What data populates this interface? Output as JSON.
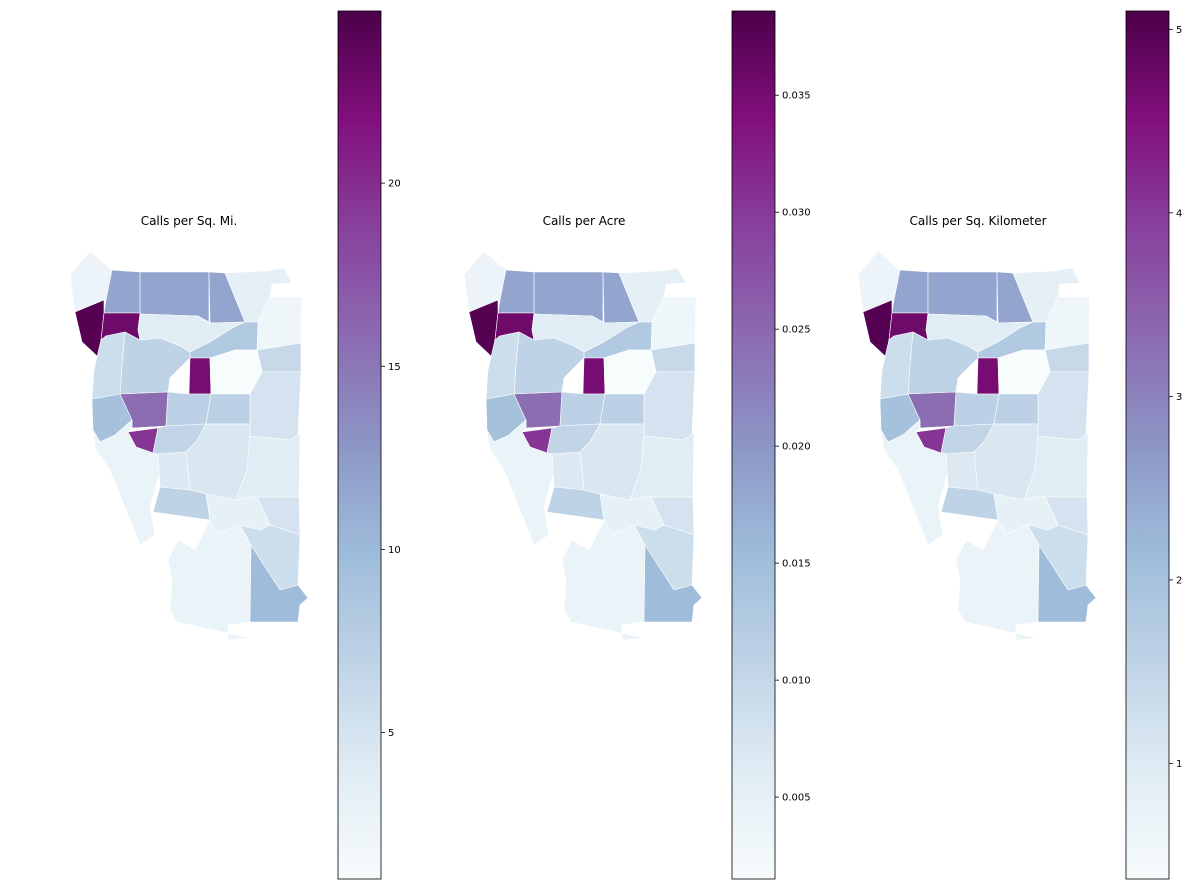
{
  "colormap": {
    "name": "BuPu",
    "stops": [
      "#f7fcfd",
      "#e0ecf4",
      "#bfd3e6",
      "#9ebcda",
      "#8c96c6",
      "#8c6bb1",
      "#88419d",
      "#810f7c",
      "#4d004b"
    ]
  },
  "panels": [
    {
      "title": "Calls per Sq. Mi.",
      "colorbar": {
        "vmin": 1.0,
        "vmax": 24.7,
        "ticks": [
          5,
          10,
          15,
          20
        ],
        "tick_labels": [
          "5",
          "10",
          "15",
          "20"
        ]
      }
    },
    {
      "title": "Calls per Acre",
      "colorbar": {
        "vmin": 0.0015,
        "vmax": 0.0386,
        "ticks": [
          0.005,
          0.01,
          0.015,
          0.02,
          0.025,
          0.03,
          0.035
        ],
        "tick_labels": [
          "0.005",
          "0.010",
          "0.015",
          "0.020",
          "0.025",
          "0.030",
          "0.035"
        ]
      }
    },
    {
      "title": "Calls per Sq. Kilometer",
      "colorbar": {
        "vmin": 0.37,
        "vmax": 5.1,
        "ticks": [
          1,
          2,
          3,
          4,
          5
        ],
        "tick_labels": [
          "1",
          "2",
          "3",
          "4",
          "5"
        ]
      }
    }
  ],
  "regions": [
    {
      "id": "nw-coast",
      "value": 0.06
    },
    {
      "id": "north-1",
      "value": 0.45
    },
    {
      "id": "north-2",
      "value": 0.45
    },
    {
      "id": "north-3",
      "value": 0.45
    },
    {
      "id": "ne-1",
      "value": 0.1
    },
    {
      "id": "ne-strip",
      "value": 0.05
    },
    {
      "id": "west-coast-dark",
      "value": 0.98
    },
    {
      "id": "west-dark-2",
      "value": 0.92
    },
    {
      "id": "central-n",
      "value": 0.12
    },
    {
      "id": "central-ne",
      "value": 0.3
    },
    {
      "id": "east-1",
      "value": 0.22
    },
    {
      "id": "west-1",
      "value": 0.2
    },
    {
      "id": "center-big",
      "value": 0.25
    },
    {
      "id": "dark-square",
      "value": 0.9
    },
    {
      "id": "white-block",
      "value": 0.0
    },
    {
      "id": "east-2",
      "value": 0.17
    },
    {
      "id": "sw-1",
      "value": 0.35
    },
    {
      "id": "purple-mid",
      "value": 0.62
    },
    {
      "id": "center-s1",
      "value": 0.26
    },
    {
      "id": "strip-e",
      "value": 0.26
    },
    {
      "id": "purple-low",
      "value": 0.78
    },
    {
      "id": "center-s2",
      "value": 0.24
    },
    {
      "id": "south-mid",
      "value": 0.15
    },
    {
      "id": "coast-strip",
      "value": 0.07
    },
    {
      "id": "south-center",
      "value": 0.14
    },
    {
      "id": "south-east",
      "value": 0.12
    },
    {
      "id": "south-2",
      "value": 0.25
    },
    {
      "id": "se-small",
      "value": 0.17
    },
    {
      "id": "se-1",
      "value": 0.09
    },
    {
      "id": "south-big",
      "value": 0.07
    },
    {
      "id": "se-lower",
      "value": 0.2
    },
    {
      "id": "se-blue",
      "value": 0.37
    }
  ]
}
